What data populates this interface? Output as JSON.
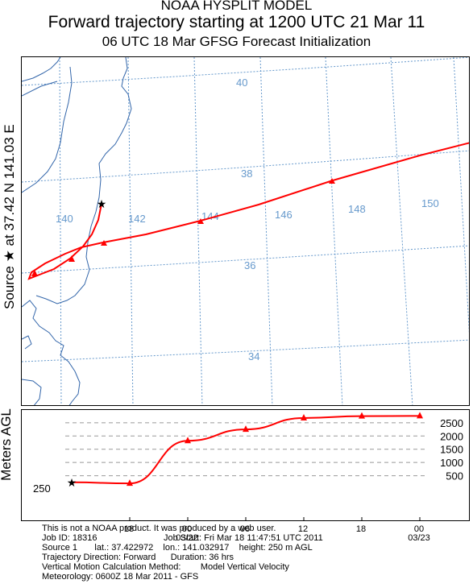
{
  "title": {
    "line1": "NOAA HYSPLIT MODEL",
    "line2": "Forward trajectory starting at 1200 UTC 21 Mar 11",
    "line3": "06 UTC 18 Mar    GFSG  Forecast Initialization"
  },
  "side_label": "Source ★ at   37.42 N  141.03 E",
  "map": {
    "lat_labels": [
      "40",
      "38",
      "36",
      "34"
    ],
    "lon_labels": [
      "140",
      "142",
      "144",
      "146",
      "148",
      "150"
    ],
    "colors": {
      "trajectory": "#ff0000",
      "grid": "#6699cc",
      "coast": "#3366aa"
    }
  },
  "vertical": {
    "ylabel": "Meters AGL",
    "source_height": "250",
    "y_ticks": [
      "500",
      "1000",
      "1500",
      "2000",
      "2500"
    ],
    "x_ticks": [
      "18",
      "00",
      "06",
      "12",
      "18",
      "00"
    ],
    "date_labels": [
      "03/22",
      "03/23"
    ]
  },
  "chart_data": {
    "type": "line",
    "title": "",
    "xlabel": "",
    "ylabel": "Meters AGL",
    "x_hours": [
      0,
      6,
      12,
      18,
      24,
      30,
      36
    ],
    "heights_m": [
      250,
      210,
      1820,
      2250,
      2680,
      2750,
      2760
    ],
    "ylim": [
      0,
      2800
    ]
  },
  "footer": {
    "line1": "This is not a NOAA product. It was produced by a web user.",
    "line2": "Job ID: 18316                           Job Start: Fri Mar 18 11:47:51 UTC 2011",
    "line3": "Source 1       lat.: 37.422972    lon.: 141.032917    height: 250 m AGL",
    "line4": "Trajectory Direction: Forward      Duration: 36 hrs",
    "line5": "Vertical Motion Calculation Method:        Model Vertical Velocity",
    "line6": "Meteorology: 0600Z 18 Mar 2011 - GFS"
  }
}
